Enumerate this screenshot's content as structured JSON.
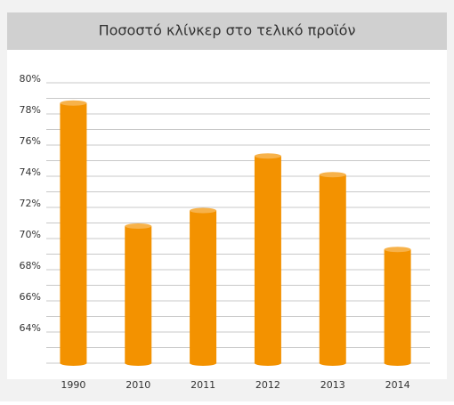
{
  "chart_data": {
    "type": "bar",
    "title": "Ποσοστό κλίνκερ στο τελικό προϊόν",
    "categories": [
      "1990",
      "2010",
      "2011",
      "2012",
      "2013",
      "2014"
    ],
    "values": [
      78.7,
      70.8,
      71.8,
      75.3,
      74.1,
      69.3
    ],
    "color": "#f39200",
    "ylim": [
      62,
      80
    ],
    "yticks": [
      {
        "value": 64,
        "label": "64%"
      },
      {
        "value": 66,
        "label": "66%"
      },
      {
        "value": 68,
        "label": "68%"
      },
      {
        "value": 70,
        "label": "70%"
      },
      {
        "value": 72,
        "label": "72%"
      },
      {
        "value": 74,
        "label": "74%"
      },
      {
        "value": 76,
        "label": "76%"
      },
      {
        "value": 78,
        "label": "78%"
      },
      {
        "value": 80,
        "label": "80%"
      }
    ],
    "minor_yticks": [
      62,
      63,
      65,
      67,
      69,
      71,
      73,
      75,
      77,
      79
    ],
    "grid": true
  }
}
